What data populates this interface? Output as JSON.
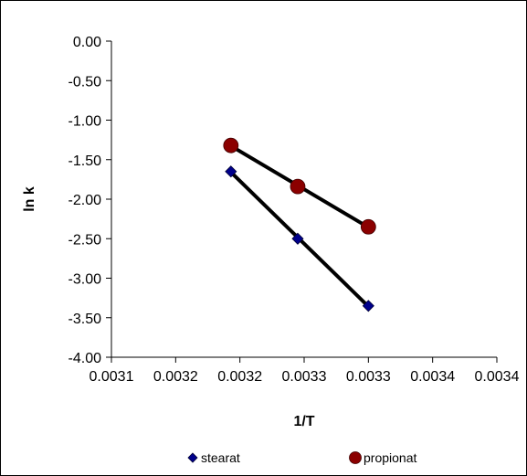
{
  "chart_data": {
    "type": "scatter",
    "title": "",
    "xlabel": "1/T",
    "ylabel": "ln k",
    "xlim": [
      0.0031,
      0.0034
    ],
    "ylim": [
      -4.0,
      0.0
    ],
    "x_ticks": [
      0.0031,
      0.00315,
      0.0032,
      0.00325,
      0.0033,
      0.00335,
      0.0034
    ],
    "x_tick_labels": [
      "0.0031",
      "0.0032",
      "0.0032",
      "0.0033",
      "0.0033",
      "0.0034",
      "0.0034"
    ],
    "y_ticks": [
      0.0,
      -0.5,
      -1.0,
      -1.5,
      -2.0,
      -2.5,
      -3.0,
      -3.5,
      -4.0
    ],
    "y_tick_labels": [
      "0.00",
      "-0.50",
      "-1.00",
      "-1.50",
      "-2.00",
      "-2.50",
      "-3.00",
      "-3.50",
      "-4.00"
    ],
    "grid": false,
    "legend_position": "bottom",
    "series": [
      {
        "name": "stearat",
        "marker": "diamond",
        "color": "#00008B",
        "x": [
          0.003193,
          0.003245,
          0.0033
        ],
        "y": [
          -1.65,
          -2.5,
          -3.35
        ],
        "trendline": true
      },
      {
        "name": "propionat",
        "marker": "circle",
        "color": "#8B0000",
        "x": [
          0.003193,
          0.003245,
          0.0033
        ],
        "y": [
          -1.32,
          -1.84,
          -2.35
        ],
        "trendline": true
      }
    ],
    "trendline_color": "#000000"
  }
}
